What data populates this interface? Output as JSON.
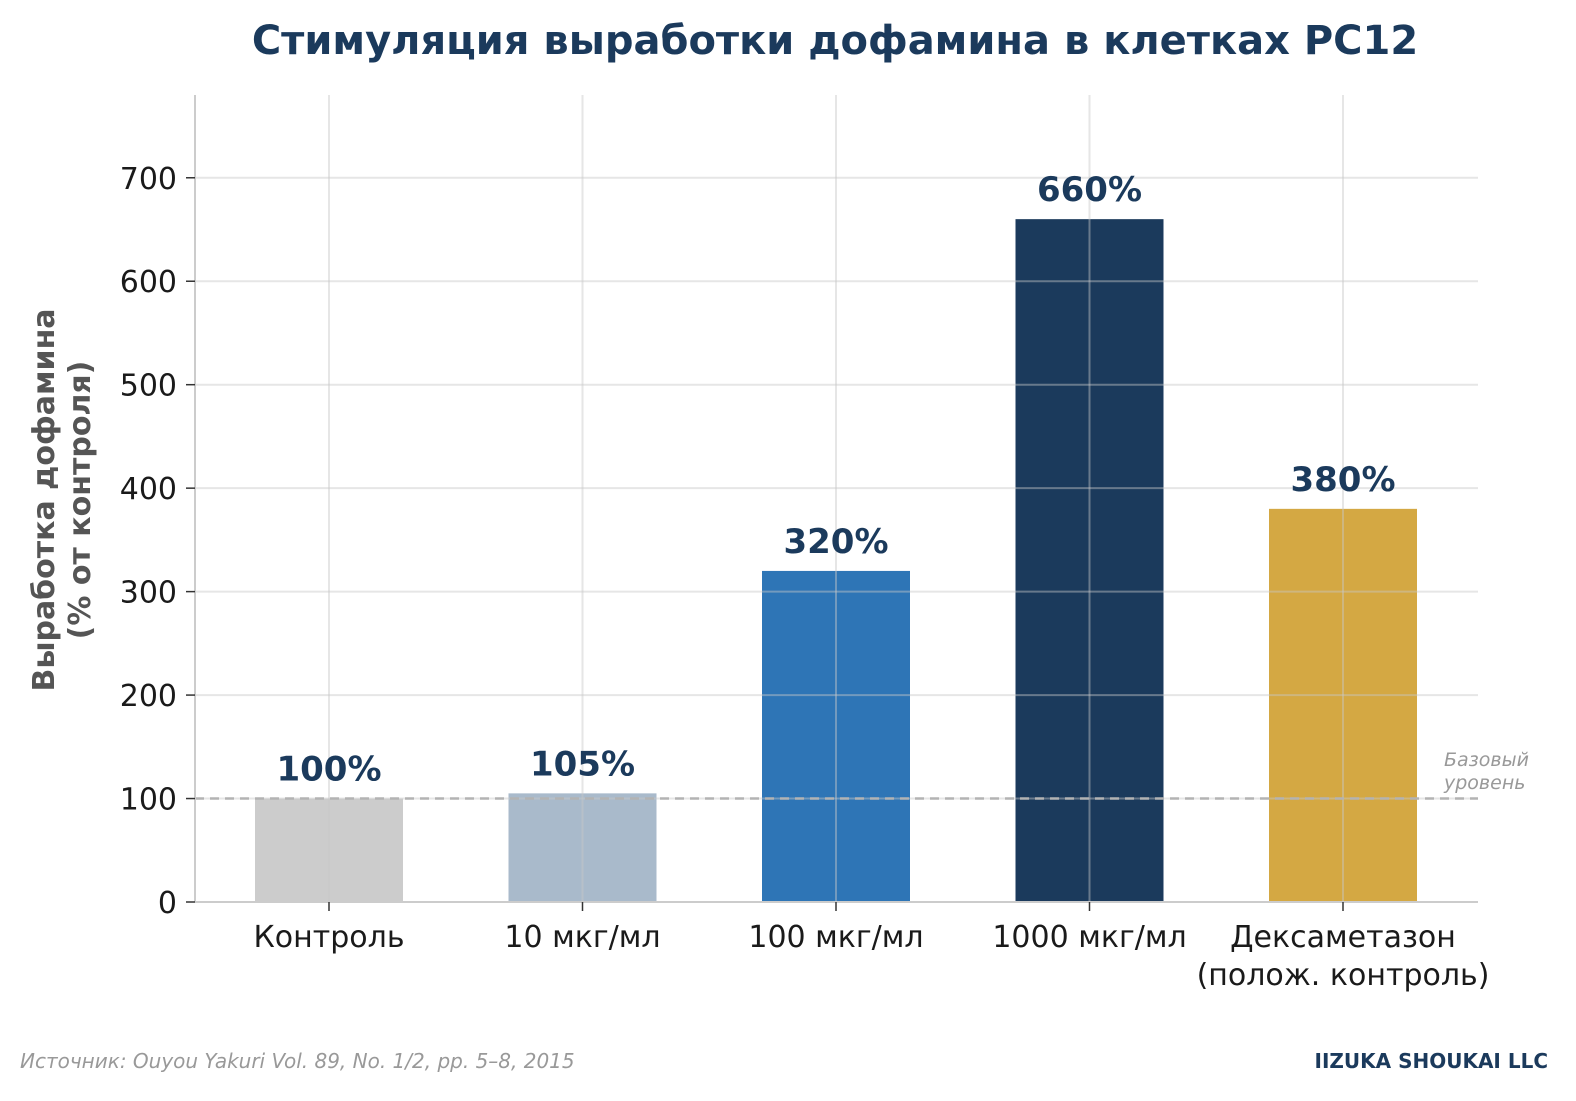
{
  "chart_data": {
    "type": "bar",
    "title": "Стимуляция выработки дофамина в клетках PC12",
    "ylabel_lines": [
      "Выработка дофамина",
      "(% от контроля)"
    ],
    "xlabel": "",
    "categories": [
      [
        "Контроль"
      ],
      [
        "10 мкг/мл"
      ],
      [
        "100 мкг/мл"
      ],
      [
        "1000 мкг/мл"
      ],
      [
        "Дексаметазон",
        "(полож. контроль)"
      ]
    ],
    "values": [
      100,
      105,
      320,
      660,
      380
    ],
    "value_labels": [
      "100%",
      "105%",
      "320%",
      "660%",
      "380%"
    ],
    "bar_colors": [
      "#cccccc",
      "#a9bacb",
      "#2e75b6",
      "#1b3a5c",
      "#d4a843"
    ],
    "ylim": [
      0,
      780
    ],
    "yticks": [
      0,
      100,
      200,
      300,
      400,
      500,
      600,
      700
    ],
    "grid": true,
    "reference_line": {
      "value": 100,
      "label_lines": [
        "Базовый",
        "уровень"
      ],
      "color": "#b3b3b3"
    },
    "colors": {
      "title": "#1b3a5c",
      "value_label": "#1b3a5c",
      "axis_label": "#555555",
      "tick_label": "#1a1a1a",
      "grid": "#ebebeb",
      "axis": "#cccccc"
    }
  },
  "footer": {
    "source": "Источник: Ouyou Yakuri Vol. 89, No. 1/2, pp. 5–8, 2015",
    "brand": "IIZUKA SHOUKAI LLC"
  }
}
